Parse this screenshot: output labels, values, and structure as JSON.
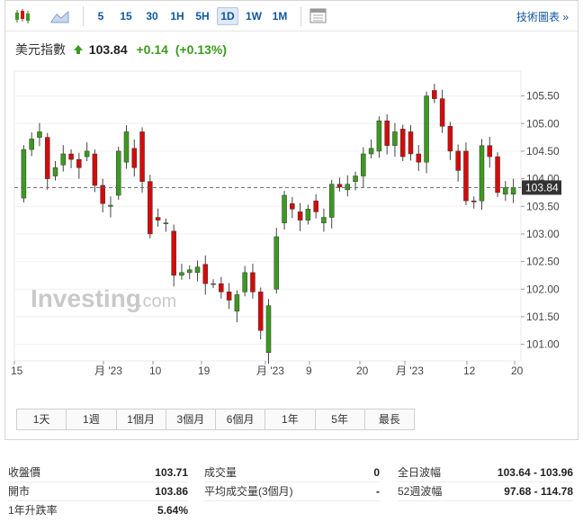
{
  "toolbar": {
    "intervals": [
      "5",
      "15",
      "30",
      "1H",
      "5H",
      "1D",
      "1W",
      "1M"
    ],
    "active_interval": "1D",
    "tech_chart_label": "技術圖表 »",
    "icons": [
      "candlestick-icon",
      "area-chart-icon",
      "grid-icon"
    ]
  },
  "quote": {
    "name": "美元指數",
    "last": "103.84",
    "change": "+0.14",
    "change_pct": "(+0.13%)",
    "direction_icon": "up-arrow-icon",
    "up_color": "#3c9a1f",
    "down_color": "#d60a0a"
  },
  "watermark": {
    "brand": "Investing",
    "suffix": ".com"
  },
  "chart_data": {
    "type": "candlestick",
    "y_ticks": [
      "105.50",
      "105.00",
      "104.50",
      "104.00",
      "103.50",
      "103.00",
      "102.50",
      "102.00",
      "101.50",
      "101.00"
    ],
    "x_ticks": [
      "15",
      "月 '23",
      "10",
      "19",
      "月 '23",
      "9",
      "20",
      "月 '23",
      "12",
      "20"
    ],
    "last_price": "103.84",
    "ylim": [
      100.7,
      105.95
    ],
    "candles": [
      [
        103.65,
        104.53
      ],
      [
        104.53,
        104.72
      ],
      [
        104.75,
        104.85
      ],
      [
        104.75,
        104.0
      ],
      [
        104.05,
        104.2
      ],
      [
        104.25,
        104.45
      ],
      [
        104.45,
        104.35
      ],
      [
        104.35,
        104.2
      ],
      [
        104.4,
        104.5
      ],
      [
        104.45,
        103.88
      ],
      [
        103.88,
        103.55
      ],
      [
        103.5,
        103.52
      ],
      [
        103.7,
        104.5
      ],
      [
        104.3,
        104.85
      ],
      [
        104.55,
        104.2
      ],
      [
        104.85,
        103.95
      ],
      [
        103.95,
        103.0
      ],
      [
        103.3,
        103.25
      ],
      [
        103.2,
        103.2
      ],
      [
        103.05,
        102.25
      ],
      [
        102.25,
        102.3
      ],
      [
        102.3,
        102.35
      ],
      [
        102.3,
        102.4
      ],
      [
        102.45,
        102.1
      ],
      [
        102.1,
        102.1
      ],
      [
        102.1,
        101.95
      ],
      [
        101.95,
        101.8
      ],
      [
        101.6,
        101.9
      ],
      [
        101.95,
        102.3
      ],
      [
        102.3,
        101.95
      ],
      [
        101.95,
        101.25
      ],
      [
        100.85,
        101.7
      ],
      [
        102.0,
        102.95
      ],
      [
        103.2,
        103.7
      ],
      [
        103.55,
        103.45
      ],
      [
        103.4,
        103.25
      ],
      [
        103.25,
        103.45
      ],
      [
        103.6,
        103.4
      ],
      [
        103.2,
        103.3
      ],
      [
        103.3,
        103.9
      ],
      [
        103.9,
        103.85
      ],
      [
        103.8,
        103.9
      ],
      [
        103.95,
        104.05
      ],
      [
        104.05,
        104.45
      ],
      [
        104.45,
        104.55
      ],
      [
        104.5,
        105.05
      ],
      [
        105.05,
        104.6
      ],
      [
        104.6,
        104.85
      ],
      [
        104.9,
        104.4
      ],
      [
        104.85,
        104.45
      ],
      [
        104.45,
        104.3
      ],
      [
        104.3,
        105.5
      ],
      [
        105.6,
        105.45
      ],
      [
        105.45,
        104.95
      ],
      [
        104.95,
        104.5
      ],
      [
        104.5,
        104.15
      ],
      [
        104.5,
        103.6
      ],
      [
        103.6,
        103.58
      ],
      [
        103.6,
        104.6
      ],
      [
        104.6,
        104.4
      ],
      [
        104.4,
        103.75
      ],
      [
        103.72,
        103.84
      ],
      [
        103.72,
        103.84
      ]
    ]
  },
  "ranges": [
    "1天",
    "1週",
    "1個月",
    "3個月",
    "6個月",
    "1年",
    "5年",
    "最長"
  ],
  "stats": [
    [
      {
        "label": "收盤價",
        "value": "103.71"
      },
      {
        "label": "成交量",
        "value": "0"
      },
      {
        "label": "全日波幅",
        "value": "103.64 - 103.96"
      }
    ],
    [
      {
        "label": "開市",
        "value": "103.86"
      },
      {
        "label": "平均成交量(3個月)",
        "value": "-"
      },
      {
        "label": "52週波幅",
        "value": "97.68 - 114.78"
      }
    ],
    [
      {
        "label": "1年升跌率",
        "value": "5.64%"
      }
    ]
  ]
}
